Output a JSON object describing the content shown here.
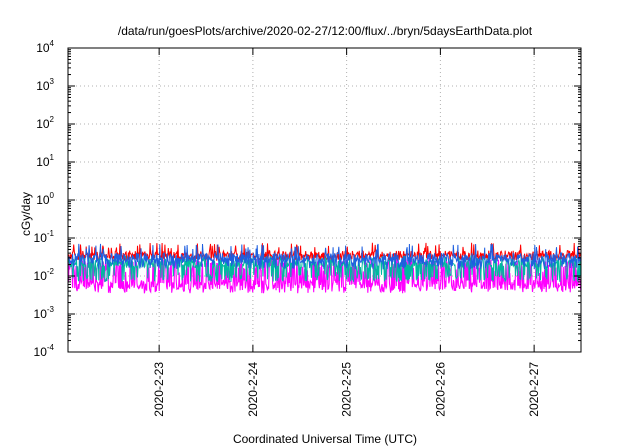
{
  "chart_data": {
    "type": "line",
    "title": "/data/run/goesPlots/archive/2020-02-27/12:00/flux/../bryn/5daysEarthData.plot",
    "xlabel": "Coordinated Universal Time (UTC)",
    "ylabel": "cGy/day",
    "yscale": "log",
    "ylim": [
      0.0001,
      10000
    ],
    "y_ticks": [
      {
        "base": "10",
        "exp": "-4",
        "value": 0.0001
      },
      {
        "base": "10",
        "exp": "-3",
        "value": 0.001
      },
      {
        "base": "10",
        "exp": "-2",
        "value": 0.01
      },
      {
        "base": "10",
        "exp": "-1",
        "value": 0.1
      },
      {
        "base": "10",
        "exp": "0",
        "value": 1
      },
      {
        "base": "10",
        "exp": "1",
        "value": 10
      },
      {
        "base": "10",
        "exp": "2",
        "value": 100
      },
      {
        "base": "10",
        "exp": "3",
        "value": 1000
      },
      {
        "base": "10",
        "exp": "4",
        "value": 10000
      }
    ],
    "xlim": [
      "2020-02-22T00:40",
      "2020-02-27T12:00"
    ],
    "x_ticks": [
      {
        "label": "2020-2-23",
        "value": "2020-02-23T00:00"
      },
      {
        "label": "2020-2-24",
        "value": "2020-02-24T00:00"
      },
      {
        "label": "2020-2-25",
        "value": "2020-02-25T00:00"
      },
      {
        "label": "2020-2-26",
        "value": "2020-02-26T00:00"
      },
      {
        "label": "2020-2-27",
        "value": "2020-02-27T00:00"
      }
    ],
    "grid": true,
    "legend": "none",
    "series": [
      {
        "color": "#ff0000",
        "typical": 0.035,
        "low": 0.025,
        "high": 0.075
      },
      {
        "color": "#00b8a0",
        "typical": 0.022,
        "low": 0.007,
        "high": 0.035
      },
      {
        "color": "#1e5fe0",
        "typical": 0.03,
        "low": 0.015,
        "high": 0.07
      },
      {
        "color": "#ff00ff",
        "typical": 0.006,
        "low": 0.0035,
        "high": 0.03
      }
    ]
  }
}
